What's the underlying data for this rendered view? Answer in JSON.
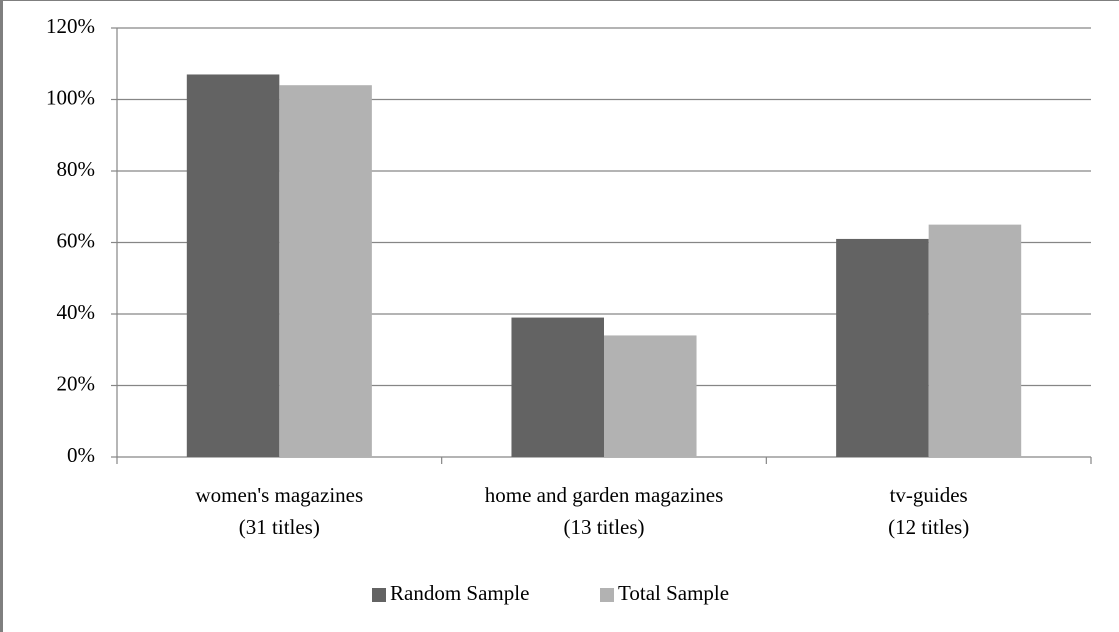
{
  "chart_data": {
    "type": "bar",
    "categories": [
      [
        "women's magazines",
        "(31 titles)"
      ],
      [
        "home and garden magazines",
        "(13 titles)"
      ],
      [
        "tv-guides",
        "(12 titles)"
      ]
    ],
    "series": [
      {
        "name": "Random Sample",
        "color": "#636363",
        "values": [
          107,
          39,
          61
        ]
      },
      {
        "name": "Total Sample",
        "color": "#b2b2b2",
        "values": [
          104,
          34,
          65
        ]
      }
    ],
    "ylim": [
      0,
      120
    ],
    "yticks": [
      {
        "value": 0,
        "label": "0%"
      },
      {
        "value": 20,
        "label": "20%"
      },
      {
        "value": 40,
        "label": "40%"
      },
      {
        "value": 60,
        "label": "60%"
      },
      {
        "value": 80,
        "label": "80%"
      },
      {
        "value": 100,
        "label": "100%"
      },
      {
        "value": 120,
        "label": "120%"
      }
    ],
    "grid": true,
    "legend": "bottom"
  }
}
